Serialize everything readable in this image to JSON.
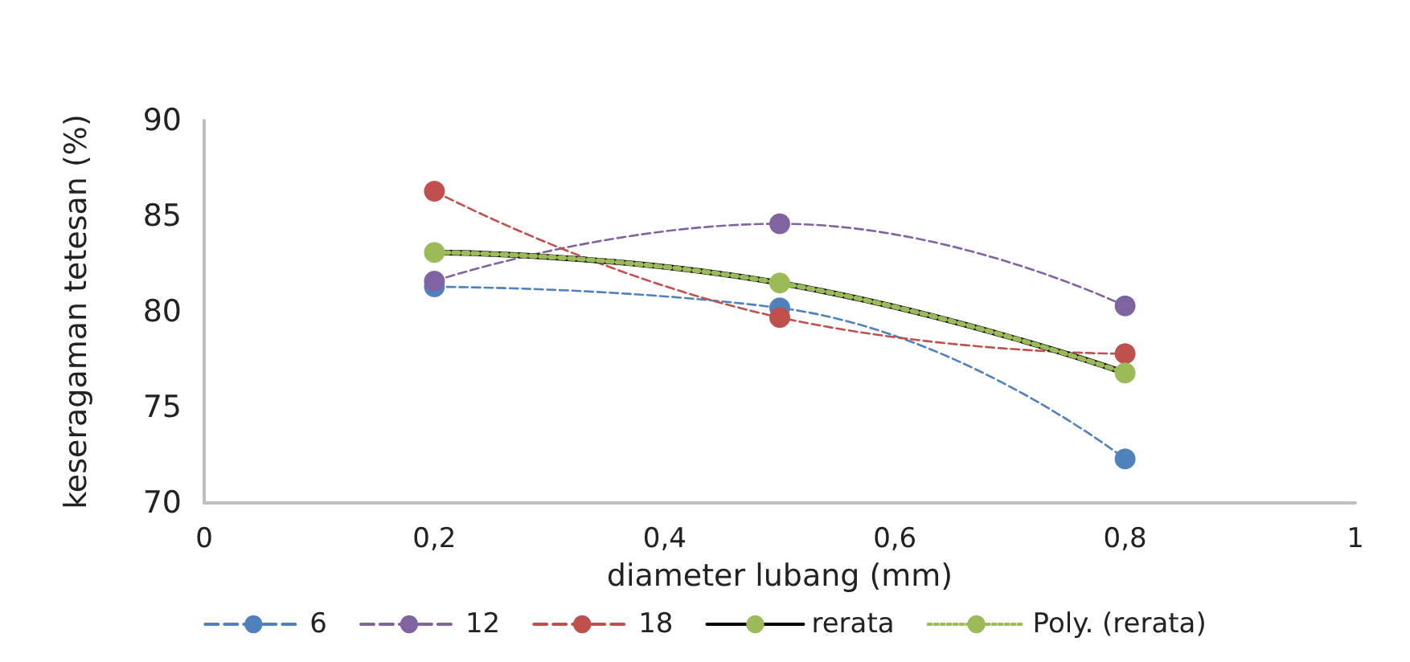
{
  "chart_data": {
    "type": "line",
    "xlabel": "diameter lubang (mm)",
    "ylabel": "keseragaman tetesan (%)",
    "xlim": [
      0,
      1
    ],
    "xticks": [
      0,
      {
        "value": 0.2,
        "label": "0,2"
      },
      {
        "value": 0.4,
        "label": "0,4"
      },
      {
        "value": 0.6,
        "label": "0,6"
      },
      {
        "value": 0.8,
        "label": "0,8"
      },
      1
    ],
    "ylim": [
      70,
      90
    ],
    "yticks": [
      70,
      75,
      80,
      85,
      90
    ],
    "x": [
      0.2,
      0.5,
      0.8
    ],
    "grid": false,
    "legend": "bottom",
    "marker": "circle",
    "line_style": "dashed",
    "series": [
      {
        "name": "6",
        "color": "#4f81bd",
        "values": [
          81.3,
          80.2,
          72.3
        ]
      },
      {
        "name": "12",
        "color": "#8064a2",
        "values": [
          81.6,
          84.6,
          80.3
        ]
      },
      {
        "name": "18",
        "color": "#c0504d",
        "values": [
          86.3,
          79.7,
          77.8
        ]
      },
      {
        "name": "rerata",
        "color": "#000000",
        "colors": [
          "#9bbb59",
          "#9bbb59",
          "#9bbb59"
        ],
        "line_style": "solid",
        "values": [
          83.1,
          81.5,
          76.8
        ]
      },
      {
        "name": "Poly. (rerata)",
        "color": "#9bbb59",
        "line_style": "dotted",
        "marker": "none",
        "values": [
          83.1,
          81.5,
          76.8
        ]
      }
    ]
  }
}
